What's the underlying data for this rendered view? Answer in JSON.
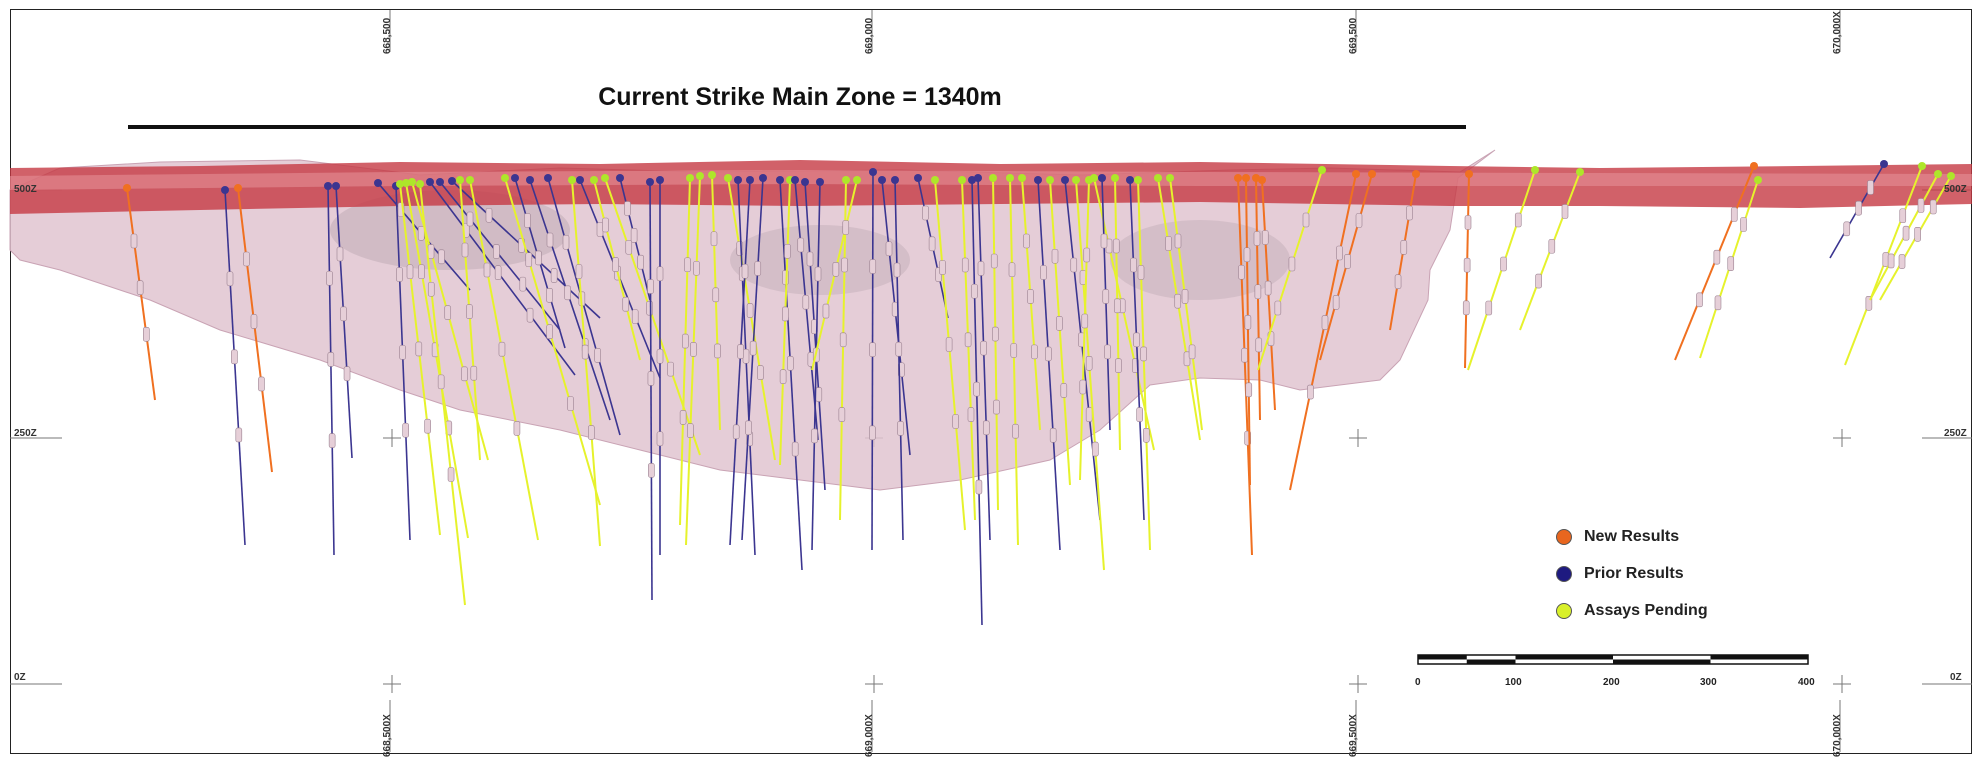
{
  "title": "Current Strike Main Zone = 1340m",
  "elevations": {
    "top": "500Z",
    "mid": "250Z",
    "bottom": "0Z"
  },
  "eastings_top": [
    "668,500",
    "669,000",
    "669,500",
    "670,000X"
  ],
  "eastings_bottom": [
    "668,500X",
    "669,000X",
    "669,500X",
    "670,000X"
  ],
  "legend": {
    "new": {
      "label": "New Results",
      "color": "#e8661f"
    },
    "prior": {
      "label": "Prior Results",
      "color": "#1e1a80"
    },
    "pending": {
      "label": "Assays Pending",
      "color": "#d9f02a"
    }
  },
  "scale_bar": {
    "labels": [
      "0",
      "100",
      "200",
      "300",
      "400"
    ]
  },
  "colors": {
    "topo_band": "#c9404a",
    "zone_fill": "#d8b4c4",
    "new_hole": "#f07020",
    "prior_hole": "#3b3590",
    "pending_hole": "#e6f22c"
  }
}
